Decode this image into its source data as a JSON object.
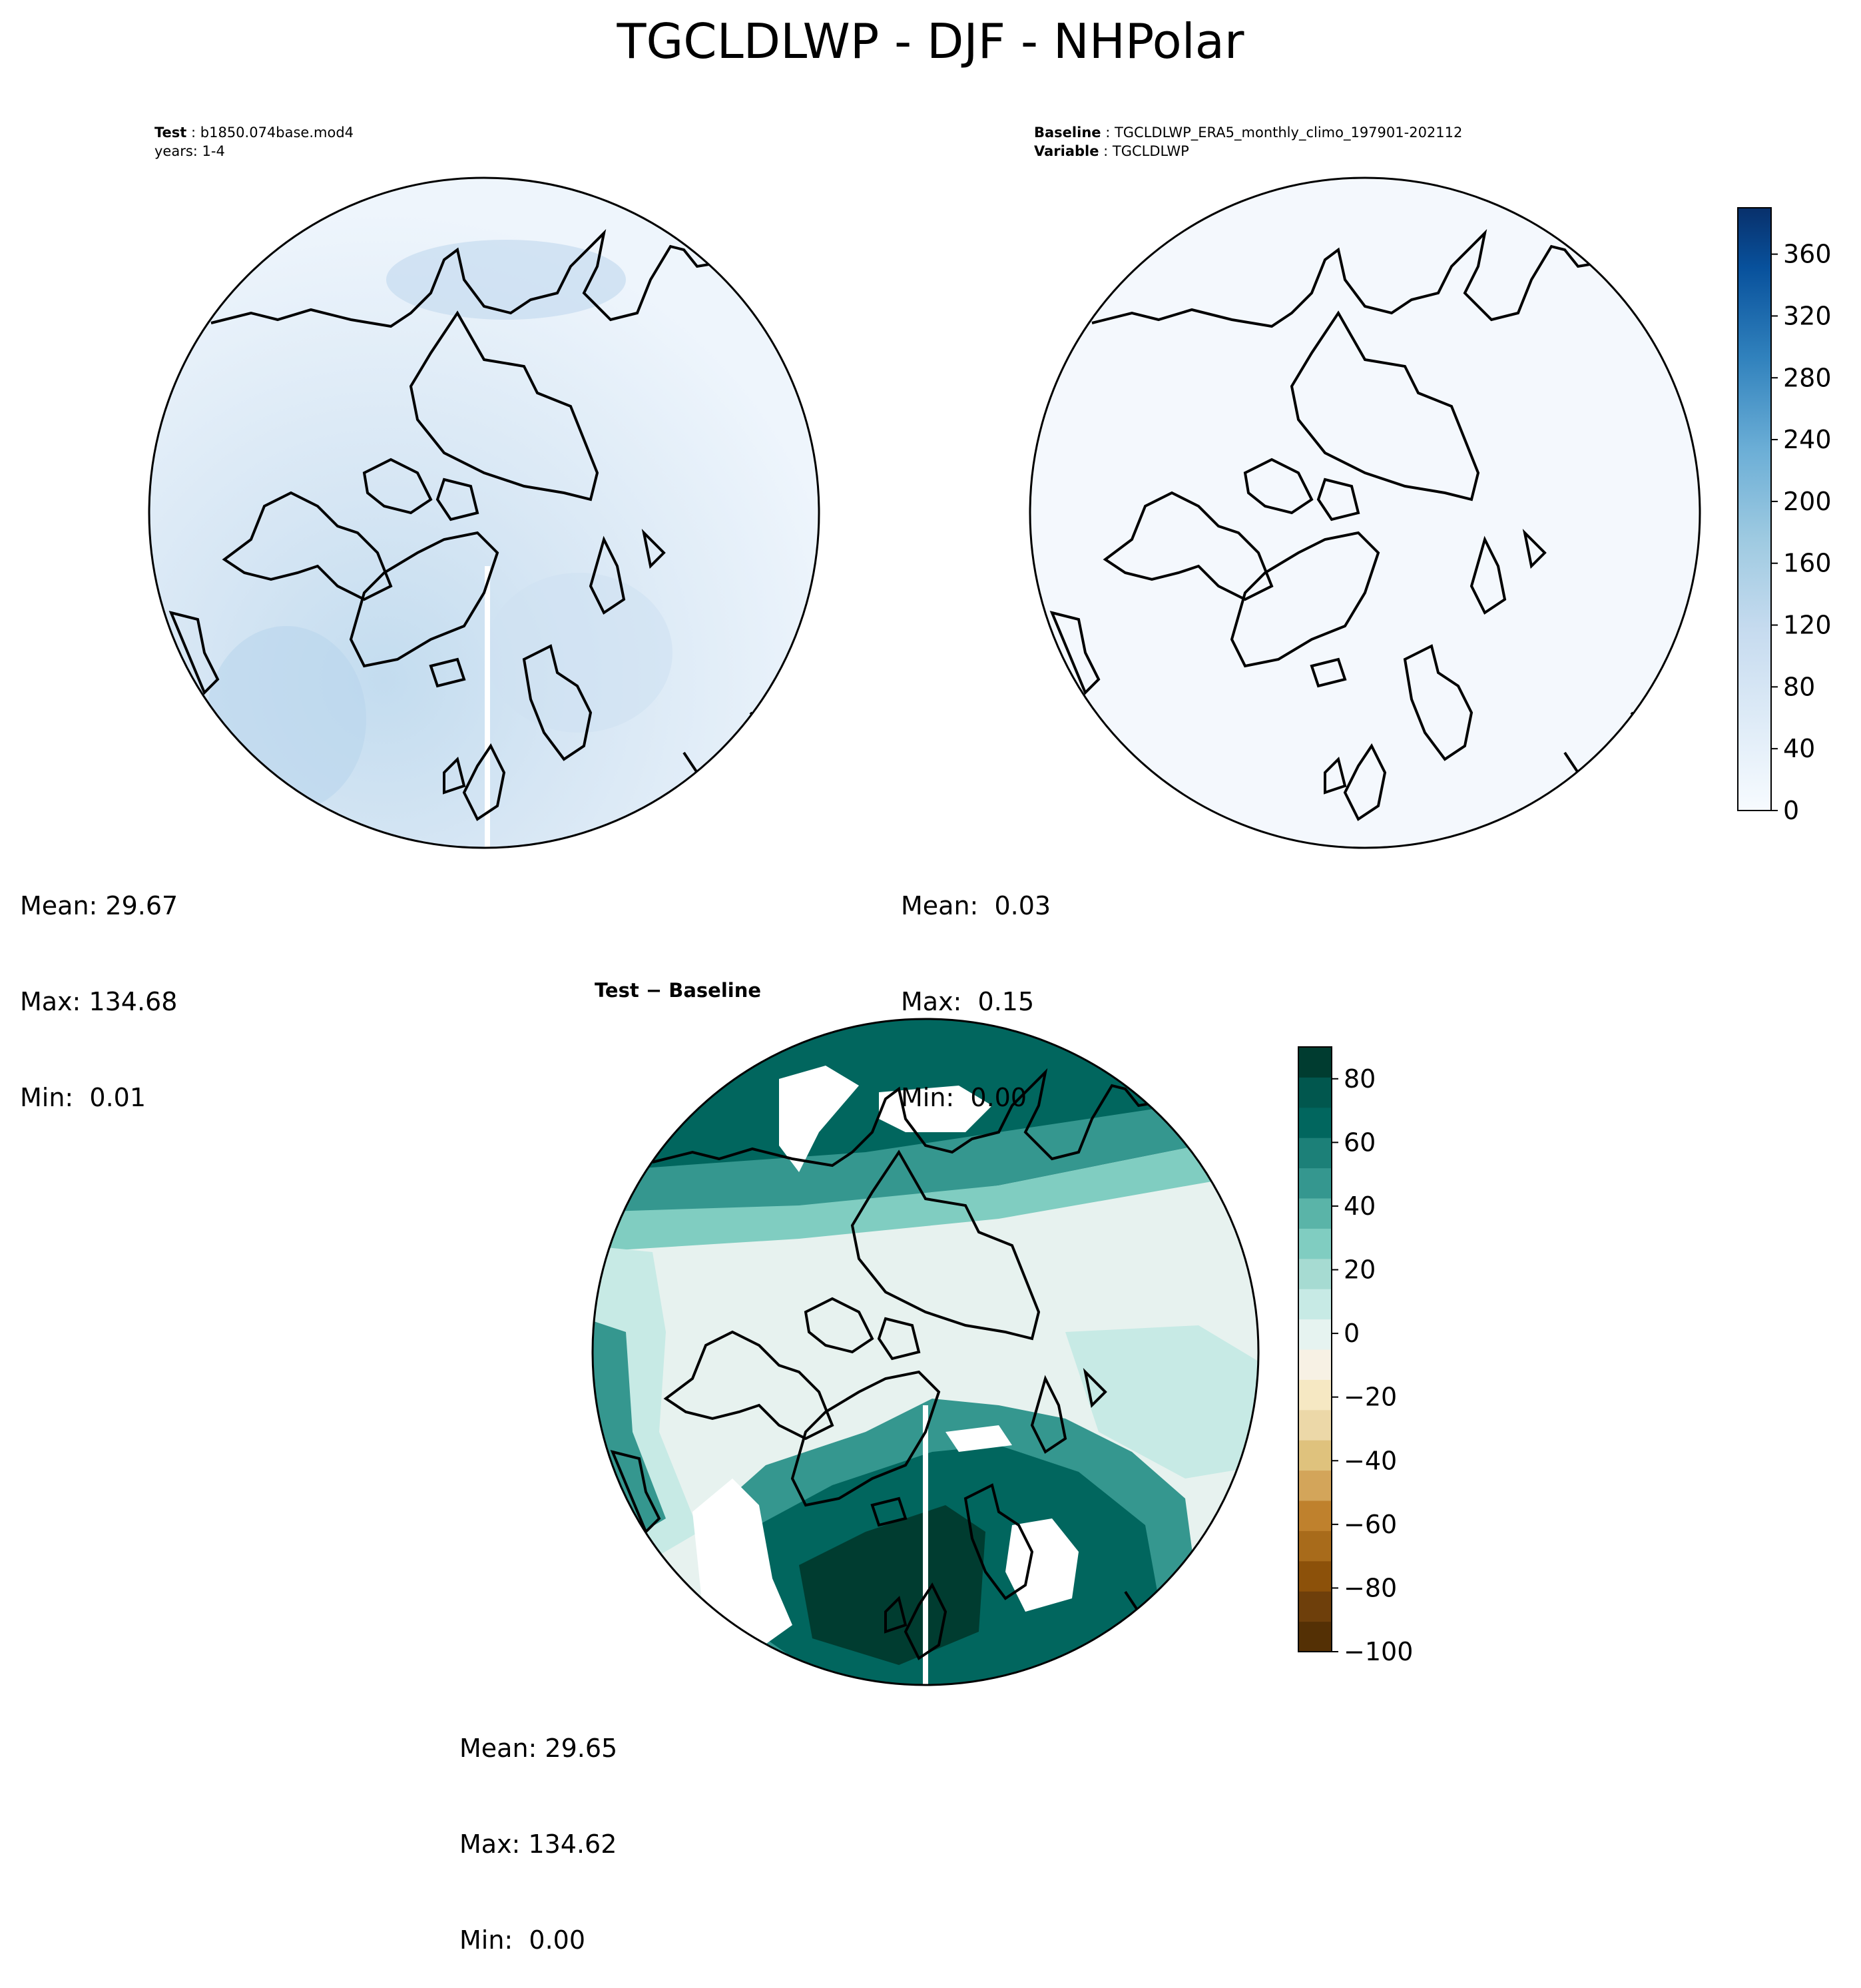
{
  "figure": {
    "title": "TGCLDLWP - DJF - NHPolar"
  },
  "panels": {
    "test": {
      "label_key": "Test",
      "label_value": "b1850.074base.mod4",
      "label_line2": "years: 1-4",
      "stats": {
        "mean": "Mean: 29.67",
        "max": "Max: 134.68",
        "min": "Min:  0.01"
      }
    },
    "baseline": {
      "label_key": "Baseline",
      "label_value": "TGCLDLWP_ERA5_monthly_climo_197901-202112",
      "label2_key": "Variable",
      "label2_value": "TGCLDLWP",
      "stats": {
        "mean": "Mean:  0.03",
        "max": "Max:  0.15",
        "min": "Min:  0.00"
      }
    },
    "difference": {
      "title": "Test − Baseline",
      "stats": {
        "mean": "Mean: 29.65",
        "max": "Max: 134.62",
        "min": "Min:  0.00"
      }
    }
  },
  "chart_data": [
    {
      "type": "heatmap",
      "projection": "north-polar-stereographic",
      "colormap": "Blues",
      "cbar_ticks": [
        "0",
        "40",
        "80",
        "120",
        "160",
        "200",
        "240",
        "280",
        "320",
        "360"
      ],
      "cbar_range": [
        0,
        390
      ],
      "panels_using": [
        "test",
        "baseline"
      ]
    },
    {
      "type": "heatmap",
      "projection": "north-polar-stereographic",
      "colormap": "BrBG",
      "cbar_ticks": [
        "80",
        "60",
        "40",
        "20",
        "0",
        "−20",
        "−40",
        "−60",
        "−80",
        "−100"
      ],
      "cbar_range": [
        -100,
        90
      ],
      "panels_using": [
        "difference"
      ]
    }
  ]
}
